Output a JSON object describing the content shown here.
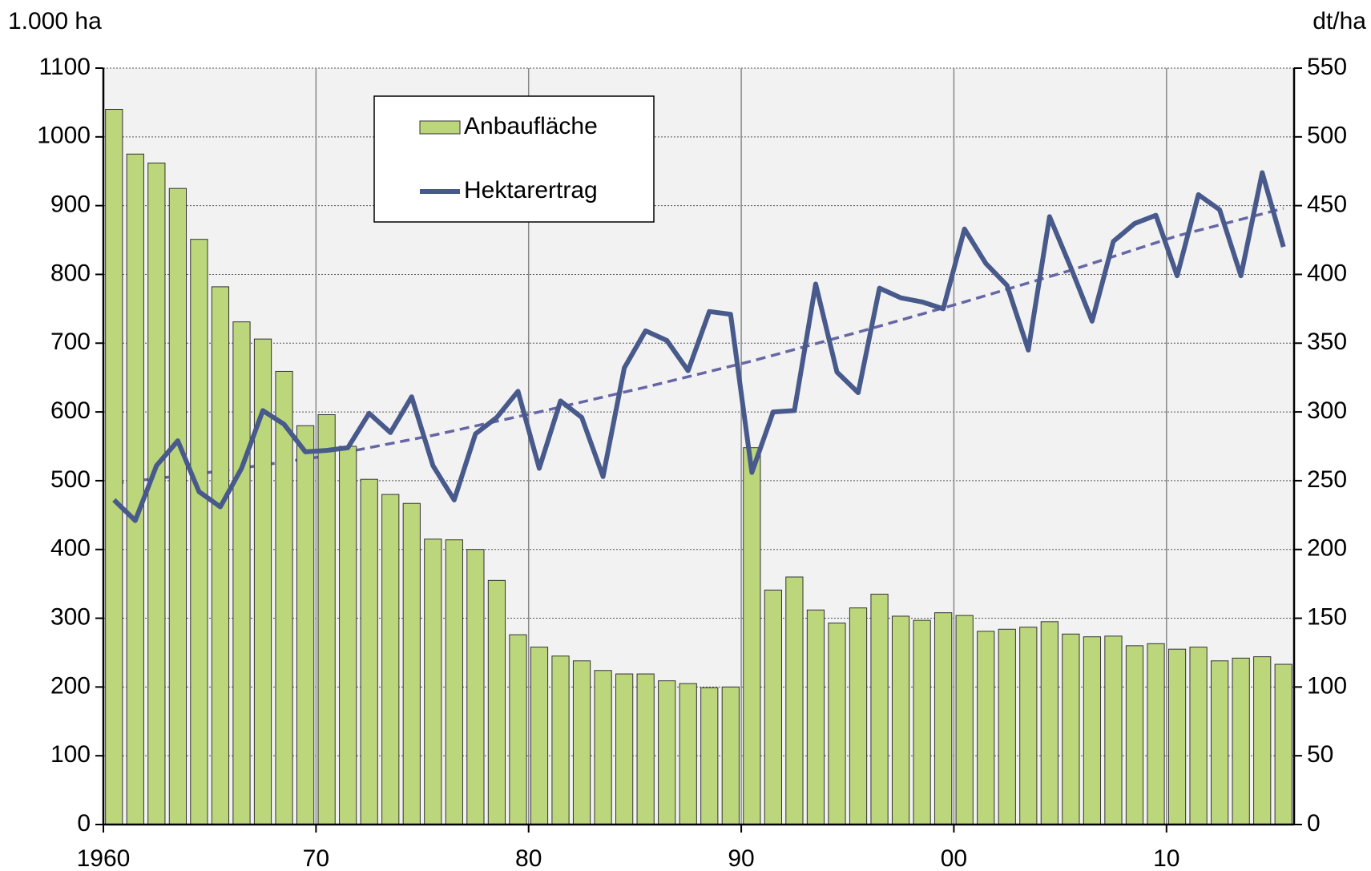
{
  "chart_data": {
    "type": "bar",
    "y_label": "1.000 ha",
    "y2_label": "dt/ha",
    "x": [
      1960,
      1961,
      1962,
      1963,
      1964,
      1965,
      1966,
      1967,
      1968,
      1969,
      1970,
      1971,
      1972,
      1973,
      1974,
      1975,
      1976,
      1977,
      1978,
      1979,
      1980,
      1981,
      1982,
      1983,
      1984,
      1985,
      1986,
      1987,
      1988,
      1989,
      1990,
      1991,
      1992,
      1993,
      1994,
      1995,
      1996,
      1997,
      1998,
      1999,
      2000,
      2001,
      2002,
      2003,
      2004,
      2005,
      2006,
      2007,
      2008,
      2009,
      2010,
      2011,
      2012,
      2013,
      2014,
      2015
    ],
    "series": [
      {
        "name": "Anbaufläche",
        "type": "bar",
        "color": "#bcd67c",
        "values": [
          1040,
          975,
          962,
          925,
          851,
          782,
          731,
          706,
          659,
          580,
          596,
          550,
          502,
          480,
          467,
          415,
          414,
          400,
          355,
          276,
          258,
          245,
          238,
          224,
          219,
          219,
          209,
          205,
          199,
          200,
          548,
          341,
          360,
          312,
          293,
          315,
          335,
          303,
          297,
          308,
          304,
          281,
          284,
          287,
          295,
          277,
          273,
          274,
          260,
          263,
          255,
          258,
          238,
          242,
          244,
          233
        ]
      },
      {
        "name": "Hektarertrag",
        "type": "line",
        "color": "#48598b",
        "axis": "y2",
        "values": [
          236,
          221,
          261,
          279,
          242,
          231,
          259,
          301,
          291,
          271,
          272,
          274,
          299,
          285,
          311,
          261,
          236,
          284,
          296,
          315,
          259,
          308,
          296,
          253,
          332,
          359,
          352,
          330,
          373,
          371,
          256,
          300,
          301,
          393,
          329,
          314,
          390,
          383,
          380,
          375,
          433,
          408,
          392,
          345,
          442,
          405,
          366,
          424,
          437,
          443,
          399,
          458,
          447,
          399,
          474,
          420
        ]
      }
    ],
    "trend": {
      "color": "#6666a6",
      "axis": "y2",
      "x": [
        1960,
        1965,
        1970,
        1975,
        1980,
        1985,
        1990,
        1995,
        2000,
        2005,
        2010,
        2015
      ],
      "values": [
        248,
        257,
        268,
        283,
        300,
        318,
        337,
        358,
        380,
        403,
        428,
        448
      ]
    },
    "xlim": [
      1960,
      2016
    ],
    "xticks": [
      {
        "value": 1960,
        "label": "1960"
      },
      {
        "value": 1970,
        "label": "70"
      },
      {
        "value": 1980,
        "label": "80"
      },
      {
        "value": 1990,
        "label": "90"
      },
      {
        "value": 2000,
        "label": "00"
      },
      {
        "value": 2010,
        "label": "10"
      }
    ],
    "ylim": [
      0,
      1100
    ],
    "yticks": [
      0,
      100,
      200,
      300,
      400,
      500,
      600,
      700,
      800,
      900,
      1000,
      1100
    ],
    "y2lim": [
      0,
      550
    ],
    "y2ticks": [
      0,
      50,
      100,
      150,
      200,
      250,
      300,
      350,
      400,
      450,
      500,
      550
    ],
    "grid": true
  }
}
